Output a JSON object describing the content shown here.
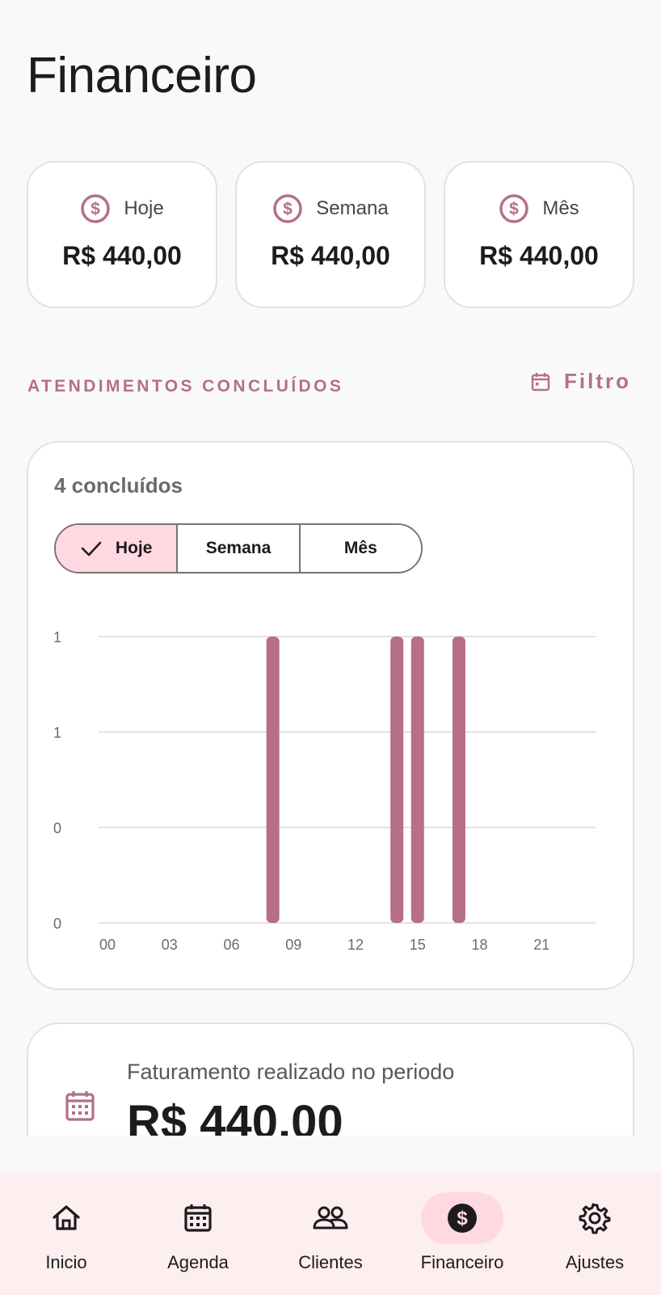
{
  "page": {
    "title": "Financeiro"
  },
  "summary": [
    {
      "label": "Hoje",
      "value": "R$ 440,00",
      "icon": "dollar-circle-icon"
    },
    {
      "label": "Semana",
      "value": "R$ 440,00",
      "icon": "dollar-circle-icon"
    },
    {
      "label": "Mês",
      "value": "R$ 440,00",
      "icon": "dollar-circle-icon"
    }
  ],
  "section": {
    "label": "ATENDIMENTOS CONCLUÍDOS",
    "filter_label": "Filtro",
    "filter_icon": "calendar-icon"
  },
  "completed": {
    "count_label": "4 concluídos",
    "segments": [
      {
        "label": "Hoje",
        "selected": true
      },
      {
        "label": "Semana",
        "selected": false
      },
      {
        "label": "Mês",
        "selected": false
      }
    ]
  },
  "chart_data": {
    "type": "bar",
    "x": [
      8,
      14,
      15,
      17
    ],
    "values": [
      1,
      1,
      1,
      1
    ],
    "xlim": [
      0,
      24
    ],
    "ylim": [
      0,
      1.5
    ],
    "x_ticks": [
      "00",
      "03",
      "06",
      "09",
      "12",
      "15",
      "18",
      "21"
    ],
    "y_ticks": [
      "0",
      "0",
      "1",
      "1"
    ],
    "grid": true,
    "bar_color": "#b76e87"
  },
  "billing": {
    "label": "Faturamento realizado no periodo",
    "value": "R$ 440.00",
    "icon": "calendar-grid-icon"
  },
  "nav": [
    {
      "label": "Inicio",
      "icon": "home-icon",
      "active": false
    },
    {
      "label": "Agenda",
      "icon": "calendar-icon",
      "active": false
    },
    {
      "label": "Clientes",
      "icon": "people-icon",
      "active": false
    },
    {
      "label": "Financeiro",
      "icon": "dollar-circle-icon",
      "active": true
    },
    {
      "label": "Ajustes",
      "icon": "gear-icon",
      "active": false
    }
  ],
  "colors": {
    "accent": "#b56f87",
    "accent_bg": "#ffd9e2",
    "nav_bg": "#fdeef0"
  }
}
